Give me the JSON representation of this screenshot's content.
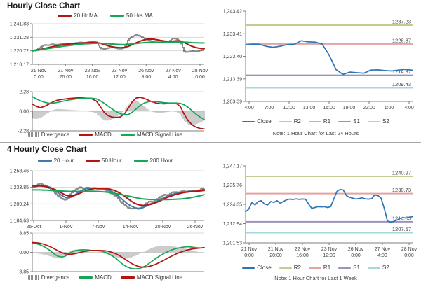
{
  "hourly_panel": {
    "title": "Hourly Close Chart",
    "ma_legend": [
      {
        "label": "20 Hr MA",
        "color": "#b41412"
      },
      {
        "label": "50 Hrs MA",
        "color": "#17a558"
      }
    ],
    "macd_legend": [
      {
        "label": "Divergence",
        "color": "#8c8c8c"
      },
      {
        "label": "MACD",
        "color": "#b41412"
      },
      {
        "label": "MACD Signal Line",
        "color": "#17a558"
      }
    ]
  },
  "four_hourly_panel": {
    "title": "4 Hourly Close Chart",
    "ma_legend": [
      {
        "label": "20 Hour",
        "color": "#4579ab"
      },
      {
        "label": "50 Hour",
        "color": "#b41412"
      },
      {
        "label": "200 Hour",
        "color": "#17a558"
      }
    ],
    "macd_legend": [
      {
        "label": "Divergence",
        "color": "#8c8c8c"
      },
      {
        "label": "MACD",
        "color": "#17a558"
      },
      {
        "label": "MACD Signal Line",
        "color": "#b41412"
      }
    ]
  },
  "pivot24_panel": {
    "legend": [
      {
        "label": "Close",
        "color": "#2e75b6"
      },
      {
        "label": "R2",
        "color": "#c5cc92"
      },
      {
        "label": "R1",
        "color": "#e5a3a0"
      },
      {
        "label": "S1",
        "color": "#9f93bb"
      },
      {
        "label": "S2",
        "color": "#a7d6e0"
      }
    ],
    "note": "Note: 1 Hour Chart for Last 24 Hours"
  },
  "pivot1w_panel": {
    "legend": [
      {
        "label": "Close",
        "color": "#2e75b6"
      },
      {
        "label": "R2",
        "color": "#c5cc92"
      },
      {
        "label": "R1",
        "color": "#e5a3a0"
      },
      {
        "label": "S1",
        "color": "#9f93bb"
      },
      {
        "label": "S2",
        "color": "#a7d6e0"
      }
    ],
    "note": "Note: 1 Hour Chart for Last 1 Week"
  },
  "chart_data": [
    {
      "id": "hourly-price",
      "type": "candlestick+ma",
      "grid": true,
      "title": "Hourly Close Chart",
      "ylim": [
        1210.17,
        1241.83
      ],
      "yticks": [
        {
          "v": 1241.83,
          "label": "1,241.83"
        },
        {
          "v": 1231.28,
          "label": "1,231.28"
        },
        {
          "v": 1220.72,
          "label": "1,220.72"
        },
        {
          "v": 1210.17,
          "label": "1,210.17"
        }
      ],
      "xticks": [
        [
          "21 Nov",
          "0:00"
        ],
        [
          "21 Nov",
          "20:00"
        ],
        [
          "22 Nov",
          "16:00"
        ],
        [
          "23 Nov",
          "12:00"
        ],
        [
          "26 Nov",
          "8:00"
        ],
        [
          "27 Nov",
          "4:00"
        ],
        [
          "28 Nov",
          "0:00"
        ]
      ],
      "close": [
        1220.8,
        1221.5,
        1223.5,
        1225.4,
        1225.0,
        1226.0,
        1225.4,
        1226.0,
        1226.5,
        1226.1,
        1226.6,
        1227.0,
        1227.4,
        1227.0,
        1227.5,
        1228.0,
        1227.4,
        1222.6,
        1222.0,
        1223.0,
        1223.6,
        1222.6,
        1222.2,
        1223.2,
        1229.6,
        1232.0,
        1233.2,
        1232.0,
        1230.4,
        1229.0,
        1228.0,
        1227.2,
        1227.6,
        1228.0,
        1227.6,
        1230.4,
        1230.0,
        1228.0,
        1219.6,
        1220.0,
        1220.6,
        1220.2,
        1221.0,
        1221.6
      ],
      "series": [
        {
          "name": "20 Hr MA",
          "color": "#b41412",
          "values": [
            1221.0,
            1221.3,
            1221.8,
            1222.5,
            1223.2,
            1224.0,
            1224.6,
            1225.2,
            1225.7,
            1226.0,
            1226.2,
            1226.5,
            1226.7,
            1226.9,
            1227.1,
            1227.3,
            1227.2,
            1226.6,
            1225.6,
            1224.6,
            1223.9,
            1223.4,
            1223.1,
            1223.3,
            1224.2,
            1225.5,
            1227.0,
            1228.3,
            1229.3,
            1229.8,
            1229.9,
            1229.5,
            1228.9,
            1228.4,
            1228.1,
            1228.2,
            1228.5,
            1228.4,
            1227.2,
            1225.6,
            1224.2,
            1223.2,
            1222.6,
            1222.4
          ]
        },
        {
          "name": "50 Hrs MA",
          "color": "#17a558",
          "values": [
            1220.6,
            1221.0,
            1221.5,
            1222.0,
            1222.5,
            1223.0,
            1223.5,
            1224.0,
            1224.4,
            1224.8,
            1225.2,
            1225.5,
            1225.8,
            1226.1,
            1226.3,
            1226.5,
            1226.6,
            1226.6,
            1226.4,
            1226.2,
            1226.0,
            1225.8,
            1225.6,
            1225.6,
            1225.8,
            1226.1,
            1226.4,
            1226.8,
            1227.1,
            1227.3,
            1227.4,
            1227.4,
            1227.4,
            1227.4,
            1227.4,
            1227.5,
            1227.6,
            1227.6,
            1227.5,
            1227.3,
            1227.1,
            1227.0,
            1226.9,
            1226.8
          ]
        }
      ]
    },
    {
      "id": "hourly-macd",
      "type": "macd",
      "grid": true,
      "ylim": [
        -2.28,
        2.28
      ],
      "yticks": [
        {
          "v": 2.28,
          "label": "2.28"
        },
        {
          "v": 0,
          "label": "0.00"
        },
        {
          "v": -2.28,
          "label": "-2.28"
        }
      ],
      "divergence_note": "bars = MACD minus MACD Signal Line",
      "series": [
        {
          "name": "MACD",
          "color": "#b41412",
          "values": [
            0.85,
            0.55,
            0.42,
            0.55,
            0.78,
            1.05,
            1.25,
            1.35,
            1.42,
            1.48,
            1.52,
            1.55,
            1.58,
            1.55,
            1.5,
            1.42,
            1.2,
            0.55,
            -0.15,
            -0.52,
            -0.68,
            -0.72,
            -0.66,
            -0.35,
            0.35,
            1.1,
            1.55,
            1.62,
            1.5,
            1.3,
            1.1,
            0.95,
            0.88,
            0.86,
            0.9,
            0.95,
            0.9,
            0.58,
            -0.35,
            -1.1,
            -1.6,
            -1.85,
            -2.0,
            -2.05
          ]
        },
        {
          "name": "MACD Signal Line",
          "color": "#17a558",
          "values": [
            1.7,
            1.45,
            1.22,
            1.05,
            0.95,
            0.94,
            1.0,
            1.1,
            1.2,
            1.3,
            1.38,
            1.44,
            1.5,
            1.52,
            1.53,
            1.51,
            1.45,
            1.22,
            0.92,
            0.58,
            0.25,
            -0.05,
            -0.28,
            -0.4,
            -0.38,
            -0.12,
            0.28,
            0.68,
            0.95,
            1.1,
            1.15,
            1.12,
            1.06,
            1.0,
            0.97,
            0.96,
            0.96,
            0.92,
            0.75,
            0.45,
            0.05,
            -0.35,
            -0.68,
            -0.95
          ]
        }
      ]
    },
    {
      "id": "pivot-24h",
      "type": "line",
      "grid": false,
      "ylim": [
        1203.39,
        1243.42
      ],
      "yticks": [
        {
          "v": 1243.42,
          "label": "1,243.42"
        },
        {
          "v": 1233.41,
          "label": "1,233.41"
        },
        {
          "v": 1223.4,
          "label": "1,223.40"
        },
        {
          "v": 1213.39,
          "label": "1,213.39"
        },
        {
          "v": 1203.39,
          "label": "1,203.39"
        }
      ],
      "xticks": [
        "4:00",
        "7:00",
        "10:00",
        "13:00",
        "16:00",
        "19:00",
        "22:00",
        "1:00",
        "4:00"
      ],
      "levels": [
        {
          "name": "R2",
          "value": 1237.23,
          "label": "1237.23",
          "color": "#c5cc92"
        },
        {
          "name": "R1",
          "value": 1228.87,
          "label": "1228.87",
          "color": "#e5a3a0"
        },
        {
          "name": "S1",
          "value": 1214.97,
          "label": "1214.97",
          "color": "#9f93bb"
        },
        {
          "name": "S2",
          "value": 1209.43,
          "label": "1209.43",
          "color": "#a7d6e0"
        }
      ],
      "series": [
        {
          "name": "Close",
          "color": "#2e75b6",
          "values": [
            1228.4,
            1228.8,
            1228.7,
            1227.8,
            1227.4,
            1227.9,
            1228.6,
            1228.7,
            1230.3,
            1229.8,
            1229.7,
            1228.8,
            1224.0,
            1217.5,
            1215.4,
            1216.4,
            1216.1,
            1215.9,
            1217.3,
            1217.4,
            1217.1,
            1216.9,
            1217.3,
            1217.6,
            1217.2
          ]
        }
      ]
    },
    {
      "id": "four-hourly-price",
      "type": "candlestick+ma",
      "grid": true,
      "title": "4 Hourly Close Chart",
      "ylim": [
        1184.63,
        1258.46
      ],
      "yticks": [
        {
          "v": 1258.46,
          "label": "1,258.46"
        },
        {
          "v": 1233.85,
          "label": "1,233.85"
        },
        {
          "v": 1209.24,
          "label": "1,209.24"
        },
        {
          "v": 1184.63,
          "label": "1,184.63"
        }
      ],
      "xticks": [
        "26-Oct",
        "1-Nov",
        "7-Nov",
        "14-Nov",
        "20-Nov",
        "26-Nov"
      ],
      "close": [
        1234,
        1236.5,
        1240,
        1237,
        1235,
        1231,
        1226,
        1221,
        1217,
        1215,
        1221,
        1228,
        1231,
        1234,
        1232,
        1233.5,
        1232,
        1233,
        1231,
        1232,
        1229,
        1226,
        1223.5,
        1220,
        1213,
        1208,
        1204,
        1202,
        1203,
        1201.5,
        1205,
        1210,
        1213,
        1212,
        1216,
        1220,
        1223,
        1222,
        1226,
        1227,
        1226,
        1228.5,
        1227,
        1229,
        1228,
        1227.5,
        1231,
        1233
      ],
      "series": [
        {
          "name": "20 Hour",
          "color": "#4579ab",
          "values": [
            1234,
            1235,
            1236,
            1236.5,
            1235.5,
            1233.5,
            1230,
            1226,
            1222,
            1219,
            1218,
            1220,
            1224,
            1228,
            1230.5,
            1232,
            1232.5,
            1232.5,
            1232.3,
            1232,
            1231,
            1229.5,
            1227,
            1223.5,
            1219,
            1214,
            1209.5,
            1206,
            1203.5,
            1202.5,
            1203,
            1205.5,
            1208.5,
            1210.5,
            1212.5,
            1215.5,
            1218.5,
            1220.5,
            1222.5,
            1224.5,
            1225.5,
            1226.5,
            1227,
            1227.5,
            1228,
            1228,
            1229,
            1231
          ]
        },
        {
          "name": "50 Hour",
          "color": "#b41412",
          "values": [
            1236,
            1236,
            1236,
            1235.5,
            1234.5,
            1233,
            1231,
            1228.5,
            1225.5,
            1222.5,
            1221,
            1221,
            1222.5,
            1225,
            1227.5,
            1229.5,
            1231,
            1232,
            1232.3,
            1232.4,
            1232.2,
            1231.5,
            1230,
            1228,
            1225,
            1221.5,
            1217.5,
            1213.5,
            1210,
            1208,
            1207,
            1207,
            1208,
            1209.5,
            1211.5,
            1214,
            1216.5,
            1219,
            1221,
            1222.8,
            1224.2,
            1225.5,
            1226.5,
            1227.2,
            1227.8,
            1228.2,
            1228.5,
            1229
          ]
        },
        {
          "name": "200 Hour",
          "color": "#17a558",
          "values": [
            1230,
            1230,
            1230,
            1229.8,
            1229.5,
            1229.2,
            1229,
            1228.6,
            1228.3,
            1228,
            1227.8,
            1227.7,
            1227.7,
            1227.8,
            1227.9,
            1228,
            1228,
            1227.9,
            1227.7,
            1227.3,
            1226.8,
            1226.2,
            1225.4,
            1224.5,
            1223.4,
            1222.3,
            1221.1,
            1220,
            1218.8,
            1217.7,
            1216.8,
            1216.2,
            1215.8,
            1215.5,
            1215.4,
            1215.4,
            1215.5,
            1215.6,
            1215.8,
            1216,
            1216.3,
            1216.8,
            1217.4,
            1218.2,
            1219.2,
            1220.3,
            1221.5,
            1222.8
          ]
        }
      ]
    },
    {
      "id": "four-hourly-macd",
      "type": "macd",
      "grid": true,
      "ylim": [
        -8.85,
        8.85
      ],
      "yticks": [
        {
          "v": 8.85,
          "label": "8.85"
        },
        {
          "v": 0,
          "label": "0.00"
        },
        {
          "v": -8.85,
          "label": "-8.85"
        }
      ],
      "divergence_note": "bars = MACD minus MACD Signal Line",
      "series": [
        {
          "name": "MACD",
          "color": "#17a558",
          "values": [
            4.3,
            4.0,
            3.5,
            2.8,
            1.8,
            0.6,
            -0.8,
            -1.8,
            -2.2,
            -1.8,
            -0.6,
            0.3,
            0.8,
            1.1,
            1.2,
            1.1,
            0.9,
            0.8,
            0.7,
            0.5,
            0.0,
            -0.8,
            -1.8,
            -3.0,
            -4.5,
            -5.8,
            -6.8,
            -7.4,
            -7.6,
            -7.5,
            -7.0,
            -6.2,
            -5.0,
            -3.8,
            -2.6,
            -1.5,
            -0.5,
            0.3,
            1.0,
            1.6,
            2.0,
            2.3,
            2.5,
            2.5,
            2.3,
            2.1,
            2.0,
            2.2
          ]
        },
        {
          "name": "MACD Signal Line",
          "color": "#b41412",
          "values": [
            4.5,
            4.4,
            4.2,
            3.8,
            3.2,
            2.5,
            1.6,
            0.7,
            -0.1,
            -0.7,
            -0.9,
            -0.8,
            -0.5,
            -0.1,
            0.3,
            0.6,
            0.8,
            0.85,
            0.85,
            0.8,
            0.7,
            0.4,
            -0.1,
            -0.8,
            -1.7,
            -2.8,
            -3.9,
            -5.0,
            -5.9,
            -6.5,
            -6.8,
            -6.8,
            -6.5,
            -6.0,
            -5.3,
            -4.5,
            -3.6,
            -2.7,
            -1.8,
            -1.0,
            -0.3,
            0.3,
            0.9,
            1.3,
            1.6,
            1.8,
            2.0,
            2.1
          ]
        }
      ]
    },
    {
      "id": "pivot-1week",
      "type": "line",
      "grid": false,
      "ylim": [
        1201.53,
        1247.17
      ],
      "yticks": [
        {
          "v": 1247.17,
          "label": "1,247.17"
        },
        {
          "v": 1235.76,
          "label": "1,235.76"
        },
        {
          "v": 1224.35,
          "label": "1,224.35"
        },
        {
          "v": 1212.94,
          "label": "1,212.94"
        },
        {
          "v": 1201.53,
          "label": "1,201.53"
        }
      ],
      "xticks": [
        [
          "21 Nov",
          "0:00"
        ],
        [
          "21 Nov",
          "20:00"
        ],
        [
          "22 Nov",
          "16:00"
        ],
        [
          "23 Nov",
          "12:00"
        ],
        [
          "26 Nov",
          "8:00"
        ],
        [
          "27 Nov",
          "4:00"
        ],
        [
          "28 Nov",
          "0:00"
        ]
      ],
      "levels": [
        {
          "name": "R2",
          "value": 1240.97,
          "label": "1240.97",
          "color": "#c5cc92"
        },
        {
          "name": "R1",
          "value": 1230.73,
          "label": "1230.73",
          "color": "#e5a3a0"
        },
        {
          "name": "S1",
          "value": 1214.03,
          "label": "1214.03",
          "color": "#9f93bb"
        },
        {
          "name": "S2",
          "value": 1207.57,
          "label": "1207.57",
          "color": "#a7d6e0"
        }
      ],
      "series": [
        {
          "name": "Close",
          "color": "#2e75b6",
          "values": [
            1220.0,
            1221.5,
            1225.5,
            1224.0,
            1226.0,
            1226.5,
            1224.5,
            1224.0,
            1226.0,
            1225.5,
            1226.5,
            1225.0,
            1226.0,
            1227.0,
            1227.5,
            1227.2,
            1227.6,
            1227.3,
            1227.5,
            1227.4,
            1224.5,
            1222.0,
            1222.5,
            1223.0,
            1222.8,
            1223.0,
            1222.5,
            1223.0,
            1227.5,
            1232.0,
            1233.2,
            1232.8,
            1229.5,
            1228.5,
            1228.0,
            1227.5,
            1227.8,
            1228.2,
            1227.6,
            1227.4,
            1227.7,
            1230.0,
            1229.5,
            1228.0,
            1222.0,
            1214.5,
            1213.8,
            1214.2,
            1215.0,
            1216.0,
            1216.5,
            1216.2,
            1216.8,
            1217.0
          ]
        }
      ]
    }
  ]
}
